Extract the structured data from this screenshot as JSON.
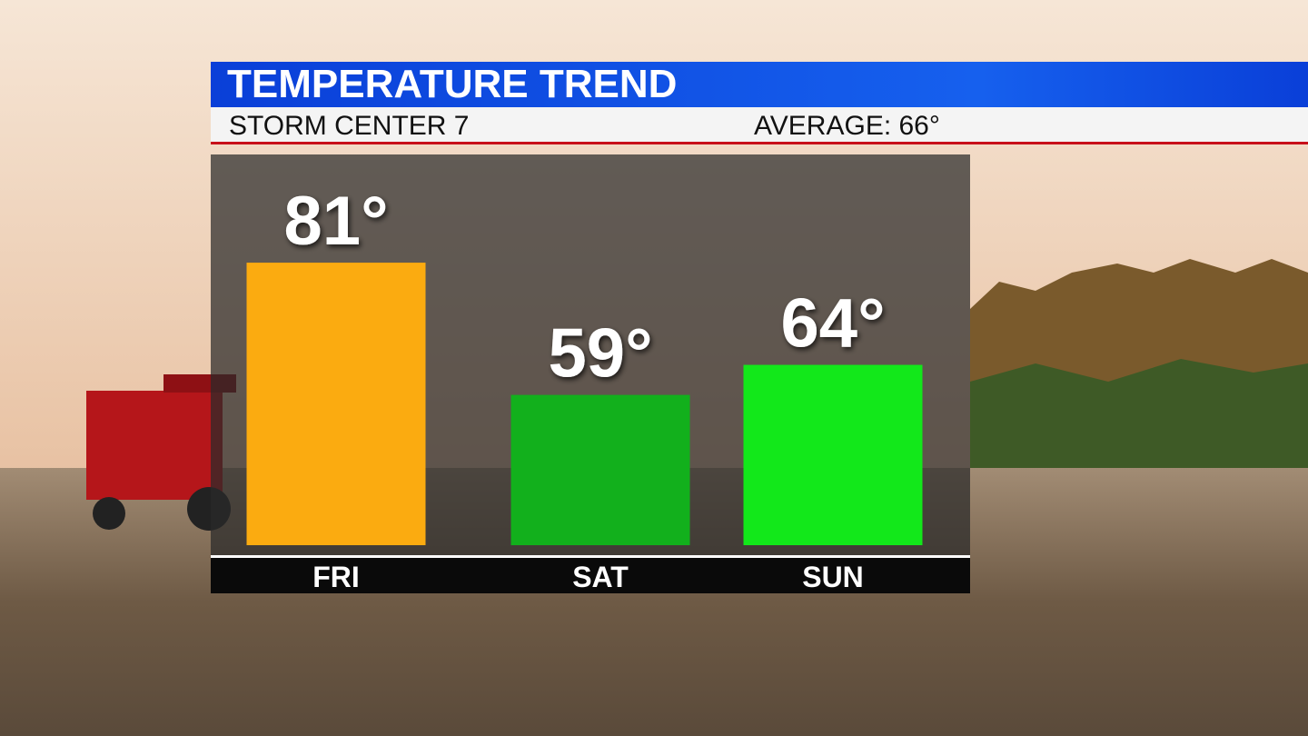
{
  "chart_data": {
    "type": "bar",
    "title": "TEMPERATURE TREND",
    "subtitle": "STORM CENTER 7",
    "annotation": "AVERAGE: 66°",
    "categories": [
      "FRI",
      "SAT",
      "SUN"
    ],
    "values": [
      81,
      59,
      64
    ],
    "value_labels": [
      "81°",
      "59°",
      "64°"
    ],
    "colors": [
      "#fbab10",
      "#12b01c",
      "#12e81a"
    ],
    "ylim": [
      34,
      99
    ]
  }
}
